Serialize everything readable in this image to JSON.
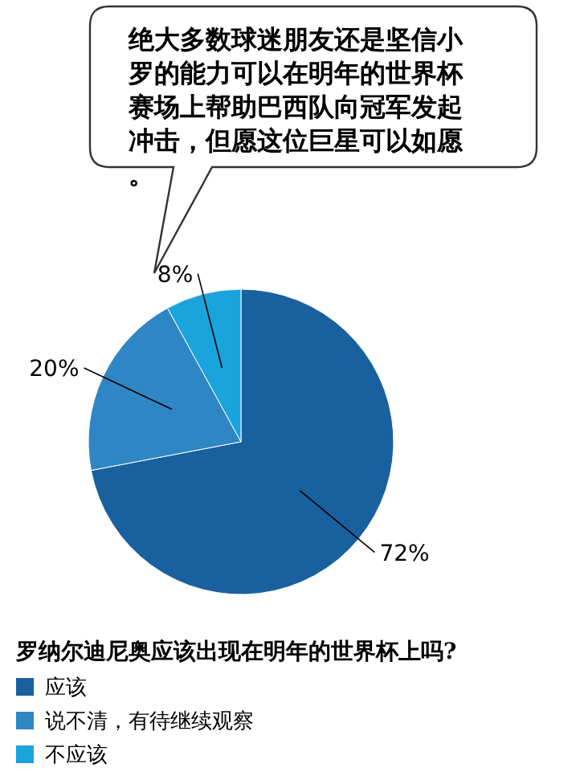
{
  "chart_data": {
    "type": "pie",
    "title": "罗纳尔迪尼奥应该出现在明年的世界杯上吗?",
    "annotations": [
      "绝大多数球迷朋友还是坚信小罗的能力可以在明年的世界杯赛场上帮助巴西队向冠军发起冲击，但愿这位巨星可以如愿。"
    ],
    "categories": [
      "应该",
      "说不清，有待继续观察",
      "不应该"
    ],
    "values": [
      72,
      20,
      8
    ],
    "value_labels": [
      "72%",
      "20%",
      "8%"
    ],
    "colors": [
      "#19609f",
      "#2f86c4",
      "#1ba3dc"
    ],
    "legend": "bottom"
  }
}
